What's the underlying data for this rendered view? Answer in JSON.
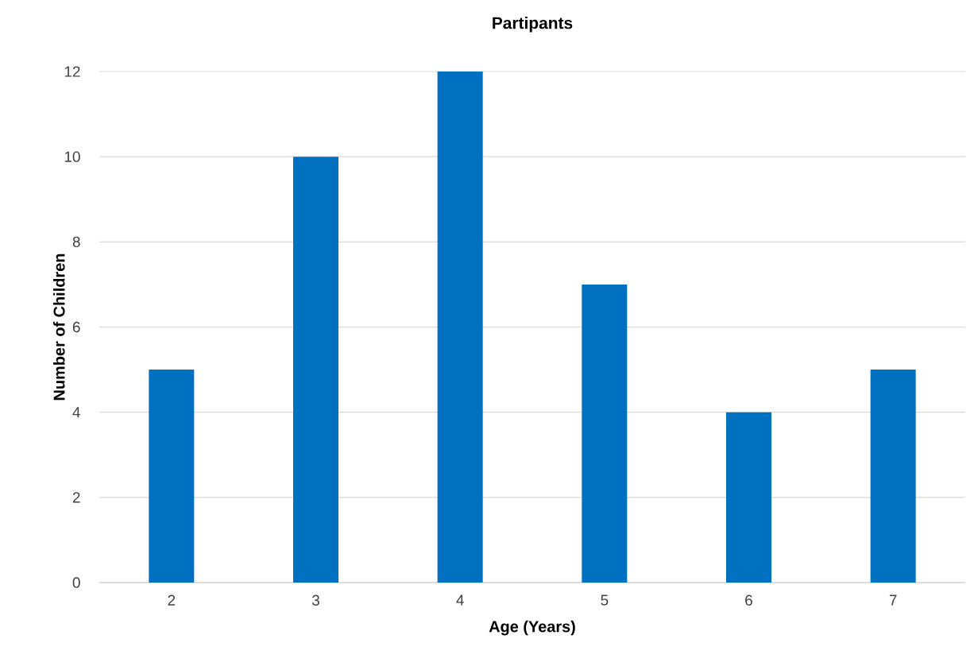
{
  "chart_data": {
    "type": "bar",
    "title": "Partipants",
    "xlabel": "Age (Years)",
    "ylabel": "Number of Children",
    "categories": [
      "2",
      "3",
      "4",
      "5",
      "6",
      "7"
    ],
    "values": [
      5,
      10,
      12,
      7,
      4,
      5
    ],
    "color": "#0070c0",
    "ylim": [
      0,
      12
    ],
    "yticks": [
      0,
      2,
      4,
      6,
      8,
      10,
      12
    ],
    "grid": "y"
  }
}
